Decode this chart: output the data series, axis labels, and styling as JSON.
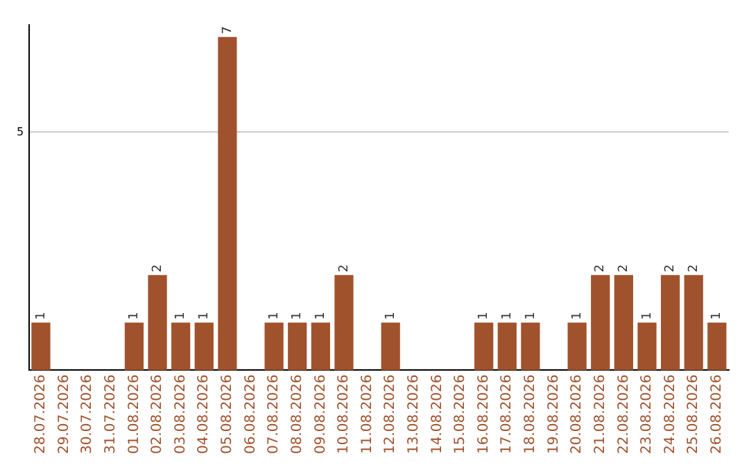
{
  "chart_data": {
    "type": "bar",
    "categories": [
      "28.07.2026",
      "29.07.2026",
      "30.07.2026",
      "31.07.2026",
      "01.08.2026",
      "02.08.2026",
      "03.08.2026",
      "04.08.2026",
      "05.08.2026",
      "06.08.2026",
      "07.08.2026",
      "08.08.2026",
      "09.08.2026",
      "10.08.2026",
      "11.08.2026",
      "12.08.2026",
      "13.08.2026",
      "14.08.2026",
      "15.08.2026",
      "16.08.2026",
      "17.08.2026",
      "18.08.2026",
      "19.08.2026",
      "20.08.2026",
      "21.08.2026",
      "22.08.2026",
      "23.08.2026",
      "24.08.2026",
      "25.08.2026",
      "26.08.2026"
    ],
    "values": [
      1,
      0,
      0,
      0,
      1,
      2,
      1,
      1,
      7,
      0,
      1,
      1,
      1,
      2,
      0,
      1,
      0,
      0,
      0,
      1,
      1,
      1,
      0,
      1,
      2,
      2,
      1,
      2,
      2,
      1
    ],
    "value_labels": [
      "1",
      null,
      null,
      null,
      "1",
      "2",
      "1",
      "1",
      "7",
      null,
      "1",
      "1",
      "1",
      "2",
      null,
      "1",
      null,
      null,
      null,
      "1",
      "1",
      "1",
      null,
      "1",
      "2",
      "2",
      "1",
      "2",
      "2",
      "1"
    ],
    "color": "#a0522d",
    "ylim": [
      0,
      7.25
    ],
    "yticks": [
      5
    ],
    "grid": "y"
  }
}
